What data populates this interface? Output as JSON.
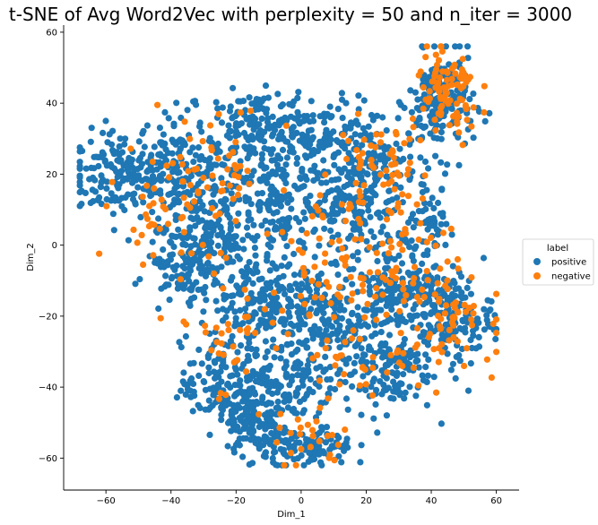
{
  "chart_data": {
    "type": "scatter",
    "title": "t-SNE of Avg Word2Vec with perplexity = 50 and n_iter = 3000",
    "xlabel": "Dim_1",
    "ylabel": "Dim_2",
    "xlim": [
      -73,
      67
    ],
    "ylim": [
      -69,
      62
    ],
    "xticks": [
      -60,
      -40,
      -20,
      0,
      20,
      40,
      60
    ],
    "yticks": [
      -60,
      -40,
      -20,
      0,
      20,
      40,
      60
    ],
    "grid": false,
    "legend": {
      "title": "label",
      "placement": "right-center",
      "entries": [
        "positive",
        "negative"
      ]
    },
    "series": [
      {
        "name": "positive",
        "color": "#1f77b4",
        "clusters": [
          {
            "cx": -55,
            "cy": 20,
            "sx": 8,
            "sy": 6,
            "n": 170
          },
          {
            "cx": -38,
            "cy": 22,
            "sx": 6,
            "sy": 8,
            "n": 130
          },
          {
            "cx": -28,
            "cy": 5,
            "sx": 7,
            "sy": 9,
            "n": 150
          },
          {
            "cx": -15,
            "cy": 33,
            "sx": 7,
            "sy": 5,
            "n": 140
          },
          {
            "cx": -8,
            "cy": 12,
            "sx": 8,
            "sy": 8,
            "n": 170
          },
          {
            "cx": 5,
            "cy": 30,
            "sx": 9,
            "sy": 6,
            "n": 150
          },
          {
            "cx": 15,
            "cy": 10,
            "sx": 7,
            "sy": 7,
            "n": 150
          },
          {
            "cx": 25,
            "cy": 22,
            "sx": 7,
            "sy": 6,
            "n": 110
          },
          {
            "cx": 43,
            "cy": 40,
            "sx": 5,
            "sy": 7,
            "n": 190
          },
          {
            "cx": -35,
            "cy": -5,
            "sx": 6,
            "sy": 5,
            "n": 110
          },
          {
            "cx": -15,
            "cy": -15,
            "sx": 8,
            "sy": 7,
            "n": 160
          },
          {
            "cx": 5,
            "cy": -20,
            "sx": 10,
            "sy": 7,
            "n": 190
          },
          {
            "cx": 30,
            "cy": -12,
            "sx": 7,
            "sy": 6,
            "n": 140
          },
          {
            "cx": 45,
            "cy": -20,
            "sx": 7,
            "sy": 6,
            "n": 170
          },
          {
            "cx": 25,
            "cy": -35,
            "sx": 8,
            "sy": 6,
            "n": 140
          },
          {
            "cx": -25,
            "cy": -40,
            "sx": 6,
            "sy": 6,
            "n": 140
          },
          {
            "cx": -5,
            "cy": -38,
            "sx": 8,
            "sy": 7,
            "n": 170
          },
          {
            "cx": -15,
            "cy": -52,
            "sx": 4,
            "sy": 5,
            "n": 90
          },
          {
            "cx": 2,
            "cy": -57,
            "sx": 7,
            "sy": 3,
            "n": 110
          },
          {
            "cx": 40,
            "cy": 5,
            "sx": 4,
            "sy": 4,
            "n": 60
          }
        ]
      },
      {
        "name": "negative",
        "color": "#ff7f0e",
        "clusters": [
          {
            "cx": 45,
            "cy": 42,
            "sx": 5,
            "sy": 7,
            "n": 90
          },
          {
            "cx": 25,
            "cy": 22,
            "sx": 7,
            "sy": 7,
            "n": 60
          },
          {
            "cx": 45,
            "cy": -18,
            "sx": 7,
            "sy": 7,
            "n": 60
          },
          {
            "cx": 32,
            "cy": -8,
            "sx": 6,
            "sy": 6,
            "n": 40
          },
          {
            "cx": -28,
            "cy": 20,
            "sx": 10,
            "sy": 10,
            "n": 60
          },
          {
            "cx": 10,
            "cy": -5,
            "sx": 10,
            "sy": 10,
            "n": 60
          },
          {
            "cx": -20,
            "cy": -25,
            "sx": 10,
            "sy": 10,
            "n": 40
          },
          {
            "cx": 0,
            "cy": -55,
            "sx": 8,
            "sy": 5,
            "n": 25
          },
          {
            "cx": 20,
            "cy": -30,
            "sx": 9,
            "sy": 8,
            "n": 40
          },
          {
            "cx": -40,
            "cy": 5,
            "sx": 8,
            "sy": 8,
            "n": 30
          }
        ]
      }
    ]
  }
}
